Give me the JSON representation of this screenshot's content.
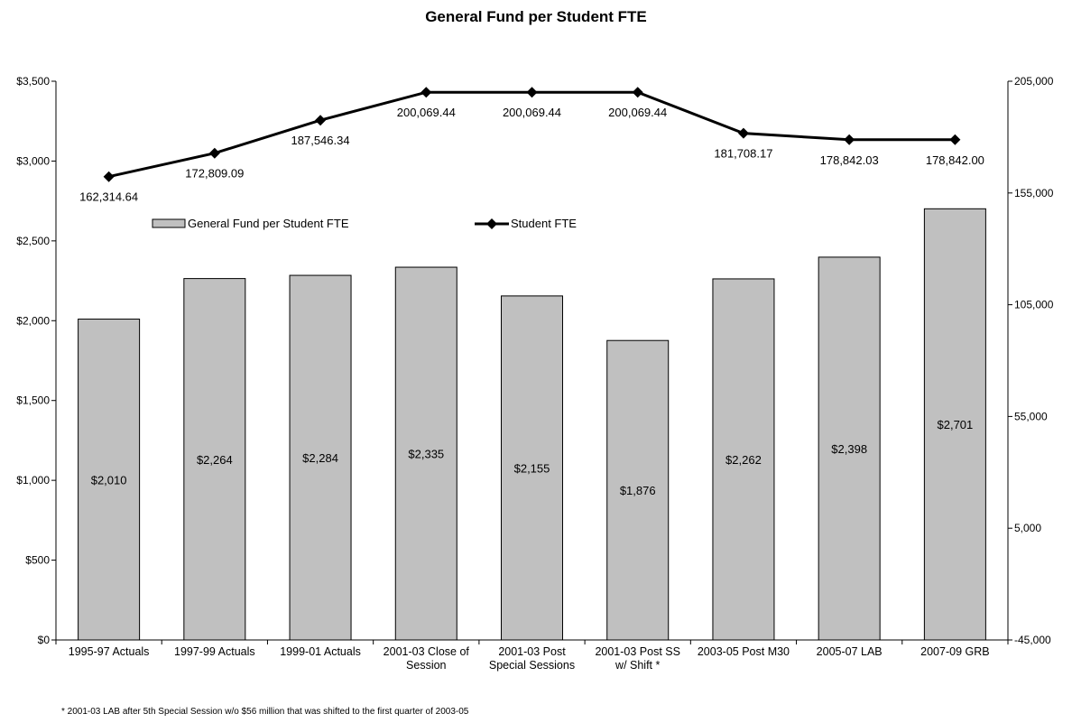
{
  "chart_data": {
    "type": "bar",
    "title": "General Fund per Student FTE",
    "categories": [
      [
        "1995-97 Actuals"
      ],
      [
        "1997-99 Actuals"
      ],
      [
        "1999-01 Actuals"
      ],
      [
        "2001-03 Close of",
        "Session"
      ],
      [
        "2001-03 Post",
        "Special Sessions"
      ],
      [
        "2001-03 Post SS",
        "w/ Shift *"
      ],
      [
        "2003-05 Post M30"
      ],
      [
        "2005-07 LAB"
      ],
      [
        "2007-09 GRB"
      ]
    ],
    "series": [
      {
        "name": "General Fund per Student FTE",
        "type": "bar",
        "axis": "left",
        "color": "#c0c0c0",
        "values": [
          2010,
          2264,
          2284,
          2335,
          2155,
          1876,
          2262,
          2398,
          2701
        ],
        "labels": [
          "$2,010",
          "$2,264",
          "$2,284",
          "$2,335",
          "$2,155",
          "$1,876",
          "$2,262",
          "$2,398",
          "$2,701"
        ]
      },
      {
        "name": "Student FTE",
        "type": "line",
        "axis": "right",
        "color": "#000000",
        "values": [
          162314.64,
          172809.09,
          187546.34,
          200069.44,
          200069.44,
          200069.44,
          181708.17,
          178842.03,
          178842.0
        ],
        "labels": [
          "162,314.64",
          "172,809.09",
          "187,546.34",
          "200,069.44",
          "200,069.44",
          "200,069.44",
          "181,708.17",
          "178,842.03",
          "178,842.00"
        ]
      }
    ],
    "y_left": {
      "min": 0,
      "max": 3500,
      "ticks": [
        0,
        500,
        1000,
        1500,
        2000,
        2500,
        3000,
        3500
      ],
      "tick_labels": [
        "$0",
        "$500",
        "$1,000",
        "$1,500",
        "$2,000",
        "$2,500",
        "$3,000",
        "$3,500"
      ]
    },
    "y_right": {
      "min": -45000,
      "max": 205000,
      "ticks": [
        -45000,
        5000,
        55000,
        105000,
        155000,
        205000
      ],
      "tick_labels": [
        "-45,000",
        "5,000",
        "55,000",
        "105,000",
        "155,000",
        "205,000"
      ]
    },
    "grid": false,
    "legend": "inside-top",
    "footnote": "* 2001-03 LAB after 5th Special Session w/o $56 million that was shifted to the first quarter of 2003-05"
  }
}
